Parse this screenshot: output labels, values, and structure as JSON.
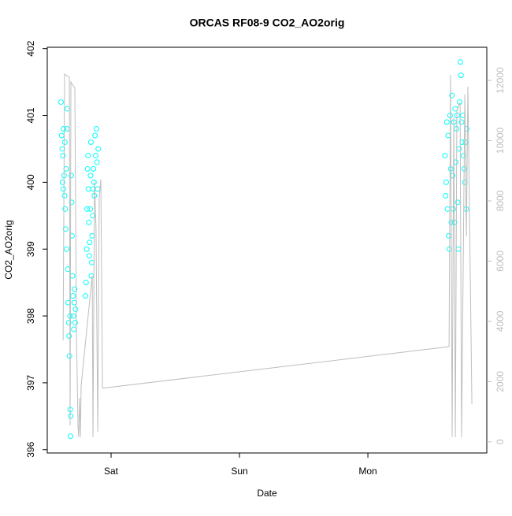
{
  "chart_data": {
    "type": "scatter",
    "title": "ORCAS RF08-9 CO2_AO2orig",
    "xlabel": "Date",
    "ylabel": "CO2_AO2orig",
    "xlim": [
      -0.497,
      2.926
    ],
    "xticks": [
      {
        "value": 0,
        "label": "Sat"
      },
      {
        "value": 1,
        "label": "Sun"
      },
      {
        "value": 2,
        "label": "Mon"
      }
    ],
    "ylim": [
      395.95,
      402.02
    ],
    "yticks": [
      396,
      397,
      398,
      399,
      400,
      401,
      402
    ],
    "y2lim": [
      -370,
      13100
    ],
    "y2ticks": [
      0,
      2000,
      4000,
      6000,
      8000,
      10000,
      12000
    ],
    "y2tick_color": "#bebebe",
    "series": [
      {
        "type": "scatter",
        "color": "#00ffff",
        "x": [
          -0.39,
          -0.385,
          -0.38,
          -0.378,
          -0.375,
          -0.372,
          -0.37,
          -0.366,
          -0.362,
          -0.36,
          -0.357,
          -0.354,
          -0.35,
          -0.347,
          -0.344,
          -0.34,
          -0.337,
          -0.334,
          -0.33,
          -0.327,
          -0.324,
          -0.32,
          -0.318,
          -0.316,
          -0.314,
          -0.31,
          -0.307,
          -0.304,
          -0.3,
          -0.297,
          -0.294,
          -0.29,
          -0.287,
          -0.284,
          -0.28,
          -0.277,
          -0.2,
          -0.195,
          -0.19,
          -0.187,
          -0.183,
          -0.18,
          -0.177,
          -0.173,
          -0.17,
          -0.167,
          -0.163,
          -0.16,
          -0.157,
          -0.153,
          -0.15,
          -0.147,
          -0.143,
          -0.14,
          -0.137,
          -0.133,
          -0.13,
          -0.125,
          -0.12,
          -0.115,
          -0.11,
          -0.105,
          -0.1,
          2.6,
          2.605,
          2.61,
          2.615,
          2.62,
          2.625,
          2.63,
          2.635,
          2.64,
          2.645,
          2.65,
          2.655,
          2.66,
          2.665,
          2.67,
          2.675,
          2.68,
          2.685,
          2.69,
          2.695,
          2.7,
          2.705,
          2.71,
          2.715,
          2.72,
          2.725,
          2.73,
          2.735,
          2.74,
          2.745,
          2.75,
          2.755,
          2.76,
          2.765,
          2.77
        ],
        "values": [
          401.2,
          400.7,
          400.5,
          400.0,
          400.4,
          399.9,
          400.8,
          400.1,
          399.8,
          400.6,
          399.6,
          399.3,
          400.2,
          399.0,
          400.8,
          401.1,
          398.7,
          398.2,
          397.9,
          397.7,
          397.4,
          398.0,
          396.6,
          396.2,
          396.5,
          400.1,
          399.7,
          399.2,
          398.6,
          398.3,
          398.0,
          397.8,
          398.2,
          398.4,
          397.9,
          398.1,
          398.3,
          398.5,
          399.0,
          399.6,
          400.2,
          400.4,
          399.9,
          399.4,
          398.9,
          399.1,
          399.6,
          400.1,
          400.6,
          398.6,
          398.8,
          399.2,
          399.5,
          399.9,
          400.2,
          400.0,
          399.8,
          400.7,
          400.4,
          400.8,
          400.3,
          399.9,
          400.5,
          400.4,
          399.8,
          400.0,
          400.9,
          399.6,
          400.7,
          399.2,
          399.0,
          401.0,
          400.2,
          399.4,
          401.3,
          400.1,
          399.6,
          400.9,
          399.4,
          401.1,
          400.3,
          400.8,
          401.0,
          399.7,
          399.0,
          400.5,
          401.2,
          401.8,
          401.6,
          400.9,
          400.6,
          401.0,
          400.4,
          400.2,
          400.0,
          400.6,
          399.6,
          400.8
        ]
      },
      {
        "type": "line",
        "axis": "y2",
        "color": "#bebebe",
        "x": [
          -0.374,
          -0.362,
          -0.325,
          -0.319,
          -0.313,
          -0.282,
          -0.27,
          -0.258,
          -0.252,
          -0.245,
          -0.239,
          -0.233,
          -0.19,
          -0.147,
          -0.141,
          -0.129,
          -0.117,
          -0.104,
          -0.092,
          -0.08,
          -0.067,
          2.632,
          2.644,
          2.656,
          2.669,
          2.681,
          2.693,
          2.718,
          2.73,
          2.755,
          2.767,
          2.779,
          2.81
        ],
        "values": [
          3370,
          12210,
          12100,
          550,
          11950,
          11740,
          3680,
          550,
          160,
          1460,
          160,
          1860,
          3690,
          5520,
          160,
          8650,
          7080,
          340,
          8130,
          8710,
          1780,
          3160,
          12180,
          160,
          10750,
          160,
          11010,
          11270,
          160,
          11530,
          6820,
          11790,
          1250
        ]
      }
    ]
  }
}
